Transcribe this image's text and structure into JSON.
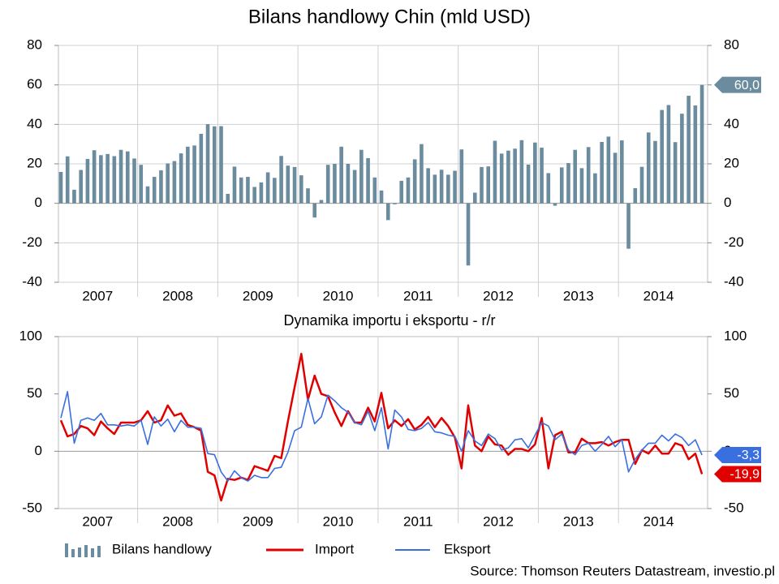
{
  "chart_data": [
    {
      "type": "bar",
      "title": "Bilans handlowy Chin (mld USD)",
      "series": [
        {
          "name": "Bilans handlowy",
          "color": "#6b8c9e",
          "values": [
            15.9,
            23.8,
            6.9,
            16.9,
            22.5,
            26.9,
            24.4,
            25.0,
            23.9,
            27.1,
            26.3,
            22.7,
            19.5,
            8.6,
            13.4,
            16.7,
            20.2,
            21.4,
            25.3,
            28.7,
            29.3,
            35.2,
            40.1,
            39.0,
            39.1,
            4.8,
            18.6,
            13.1,
            13.4,
            8.3,
            10.6,
            15.7,
            12.9,
            24.0,
            19.1,
            18.4,
            14.2,
            7.6,
            -7.2,
            1.7,
            19.5,
            20.0,
            28.7,
            20.0,
            16.9,
            27.1,
            22.9,
            13.1,
            6.5,
            -8.5,
            -0.5,
            11.4,
            13.1,
            22.3,
            30.0,
            17.8,
            14.5,
            17.0,
            14.5,
            16.5,
            27.3,
            -31.5,
            5.4,
            18.4,
            18.7,
            31.7,
            25.2,
            26.7,
            27.7,
            32.0,
            19.6,
            30.8,
            28.2,
            15.3,
            -1.2,
            18.2,
            20.4,
            27.1,
            17.8,
            28.5,
            15.2,
            31.1,
            33.8,
            25.6,
            31.9,
            -23.0,
            7.7,
            18.5,
            35.9,
            31.6,
            47.3,
            49.8,
            31.0,
            45.4,
            54.5,
            49.6,
            60
          ],
          "value_labels": [
            null,
            null,
            null,
            null,
            null,
            null,
            null,
            null,
            null,
            null,
            null,
            null,
            null,
            null,
            null,
            null,
            null,
            null,
            null,
            null,
            null,
            null,
            null,
            null,
            null,
            null,
            null,
            null,
            null,
            null,
            null,
            null,
            null,
            null,
            null,
            null,
            null,
            null,
            null,
            null,
            null,
            null,
            null,
            null,
            null,
            null,
            null,
            null,
            null,
            null,
            null,
            null,
            null,
            null,
            null,
            null,
            null,
            null,
            null,
            null,
            null,
            null,
            null,
            null,
            null,
            null,
            null,
            null,
            null,
            null,
            null,
            null,
            null,
            null,
            null,
            null,
            null,
            null,
            null,
            null,
            null,
            null,
            null,
            null,
            null,
            null,
            null,
            null,
            null,
            null,
            null,
            null,
            null,
            null,
            null,
            null,
            "60,0"
          ]
        }
      ],
      "ylim": [
        -40,
        80
      ],
      "yticks": [
        -40,
        -20,
        0,
        20,
        40,
        60,
        80
      ],
      "y2lim": [
        -40,
        80
      ],
      "y2ticks": [
        -40,
        -20,
        0,
        20,
        40,
        60,
        80
      ],
      "xticks": [
        2007,
        2008,
        2009,
        2010,
        2011,
        2012,
        2013,
        2014
      ],
      "grid": true
    },
    {
      "type": "line",
      "title": "Dynamika importu i eksportu - r/r",
      "series": [
        {
          "name": "Import",
          "color": "#e00000",
          "values": [
            27,
            13,
            15,
            22,
            20,
            14,
            26,
            20,
            15,
            25,
            25,
            25,
            27,
            35,
            25,
            27,
            40,
            31,
            33,
            23,
            21,
            18,
            -18,
            -21,
            -43,
            -24,
            -25,
            -23,
            -25,
            -13,
            -15,
            -17,
            -4,
            -6,
            26,
            56,
            85,
            45,
            66,
            50,
            48,
            34,
            22,
            35,
            25,
            25,
            38,
            26,
            51,
            20,
            27,
            22,
            28,
            19,
            23,
            30,
            21,
            29,
            22,
            12,
            -15,
            40,
            5,
            0,
            13,
            6,
            5,
            -3,
            2,
            2,
            0,
            6,
            29,
            -15,
            14,
            17,
            -1,
            -1,
            11,
            7,
            7,
            8,
            5,
            8,
            10,
            10,
            -11,
            1,
            -2,
            5,
            -2,
            -2,
            7,
            5,
            -7,
            -2,
            -19.9
          ],
          "value_labels": [
            null,
            null,
            null,
            null,
            null,
            null,
            null,
            null,
            null,
            null,
            null,
            null,
            null,
            null,
            null,
            null,
            null,
            null,
            null,
            null,
            null,
            null,
            null,
            null,
            null,
            null,
            null,
            null,
            null,
            null,
            null,
            null,
            null,
            null,
            null,
            null,
            null,
            null,
            null,
            null,
            null,
            null,
            null,
            null,
            null,
            null,
            null,
            null,
            null,
            null,
            null,
            null,
            null,
            null,
            null,
            null,
            null,
            null,
            null,
            null,
            null,
            null,
            null,
            null,
            null,
            null,
            null,
            null,
            null,
            null,
            null,
            null,
            null,
            null,
            null,
            null,
            null,
            null,
            null,
            null,
            null,
            null,
            null,
            null,
            null,
            null,
            null,
            null,
            null,
            null,
            null,
            null,
            null,
            null,
            null,
            null,
            "-19,9"
          ]
        },
        {
          "name": "Eksport",
          "color": "#3a6fe0",
          "values": [
            29,
            52,
            7,
            27,
            29,
            27,
            33,
            23,
            23,
            22,
            23,
            22,
            27,
            6,
            30,
            22,
            28,
            17,
            27,
            21,
            21,
            20,
            -2,
            -3,
            -18,
            -26,
            -17,
            -23,
            -26,
            -21,
            -23,
            -23,
            -15,
            -14,
            -1,
            18,
            21,
            46,
            24,
            30,
            49,
            44,
            38,
            34,
            25,
            23,
            35,
            18,
            38,
            2,
            36,
            30,
            19,
            18,
            20,
            25,
            17,
            16,
            14,
            13,
            0,
            18,
            9,
            5,
            15,
            11,
            1,
            3,
            10,
            11,
            3,
            14,
            25,
            22,
            10,
            15,
            1,
            -3,
            5,
            7,
            0,
            6,
            13,
            4,
            10,
            -18,
            -7,
            1,
            7,
            7,
            14,
            9,
            15,
            12,
            5,
            10,
            -3.3
          ],
          "value_labels": [
            null,
            null,
            null,
            null,
            null,
            null,
            null,
            null,
            null,
            null,
            null,
            null,
            null,
            null,
            null,
            null,
            null,
            null,
            null,
            null,
            null,
            null,
            null,
            null,
            null,
            null,
            null,
            null,
            null,
            null,
            null,
            null,
            null,
            null,
            null,
            null,
            null,
            null,
            null,
            null,
            null,
            null,
            null,
            null,
            null,
            null,
            null,
            null,
            null,
            null,
            null,
            null,
            null,
            null,
            null,
            null,
            null,
            null,
            null,
            null,
            null,
            null,
            null,
            null,
            null,
            null,
            null,
            null,
            null,
            null,
            null,
            null,
            null,
            null,
            null,
            null,
            null,
            null,
            null,
            null,
            null,
            null,
            null,
            null,
            null,
            null,
            null,
            null,
            null,
            null,
            null,
            null,
            null,
            null,
            null,
            null,
            "-3,3"
          ]
        }
      ],
      "ylim": [
        -50,
        100
      ],
      "yticks": [
        -50,
        0,
        50,
        100
      ],
      "y2lim": [
        -50,
        100
      ],
      "y2ticks": [
        -50,
        0,
        50,
        100
      ],
      "xticks": [
        2007,
        2008,
        2009,
        2010,
        2011,
        2012,
        2013,
        2014
      ],
      "grid": false
    }
  ],
  "source": "Source: Thomson Reuters Datastream, investio.pl"
}
